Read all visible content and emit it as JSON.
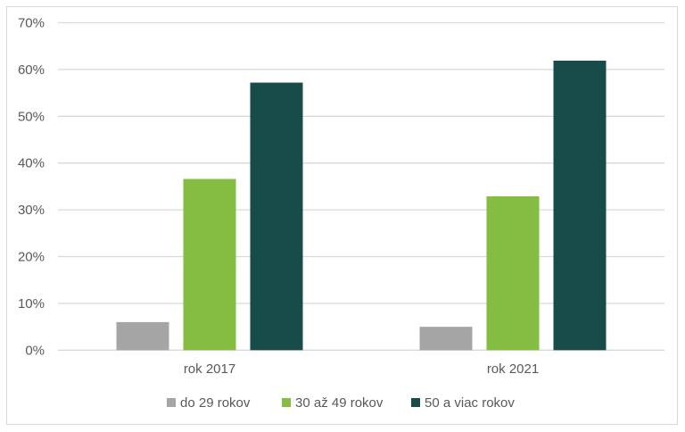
{
  "chart_data": {
    "type": "bar",
    "title": "",
    "xlabel": "",
    "ylabel": "",
    "categories": [
      "rok 2017",
      "rok 2021"
    ],
    "series": [
      {
        "name": "do 29 rokov",
        "color": "#a5a5a5",
        "values": [
          6.0,
          5.0
        ]
      },
      {
        "name": "30 až 49 rokov",
        "color": "#84bd41",
        "values": [
          36.6,
          32.9
        ]
      },
      {
        "name": "50 a viac rokov",
        "color": "#174c4b",
        "values": [
          57.2,
          61.9
        ]
      }
    ],
    "ylim": [
      0,
      70
    ],
    "yticks": [
      0,
      10,
      20,
      30,
      40,
      50,
      60,
      70
    ],
    "ytick_labels": [
      "0%",
      "10%",
      "20%",
      "30%",
      "40%",
      "50%",
      "60%",
      "70%"
    ],
    "grid": true,
    "legend_position": "bottom"
  }
}
